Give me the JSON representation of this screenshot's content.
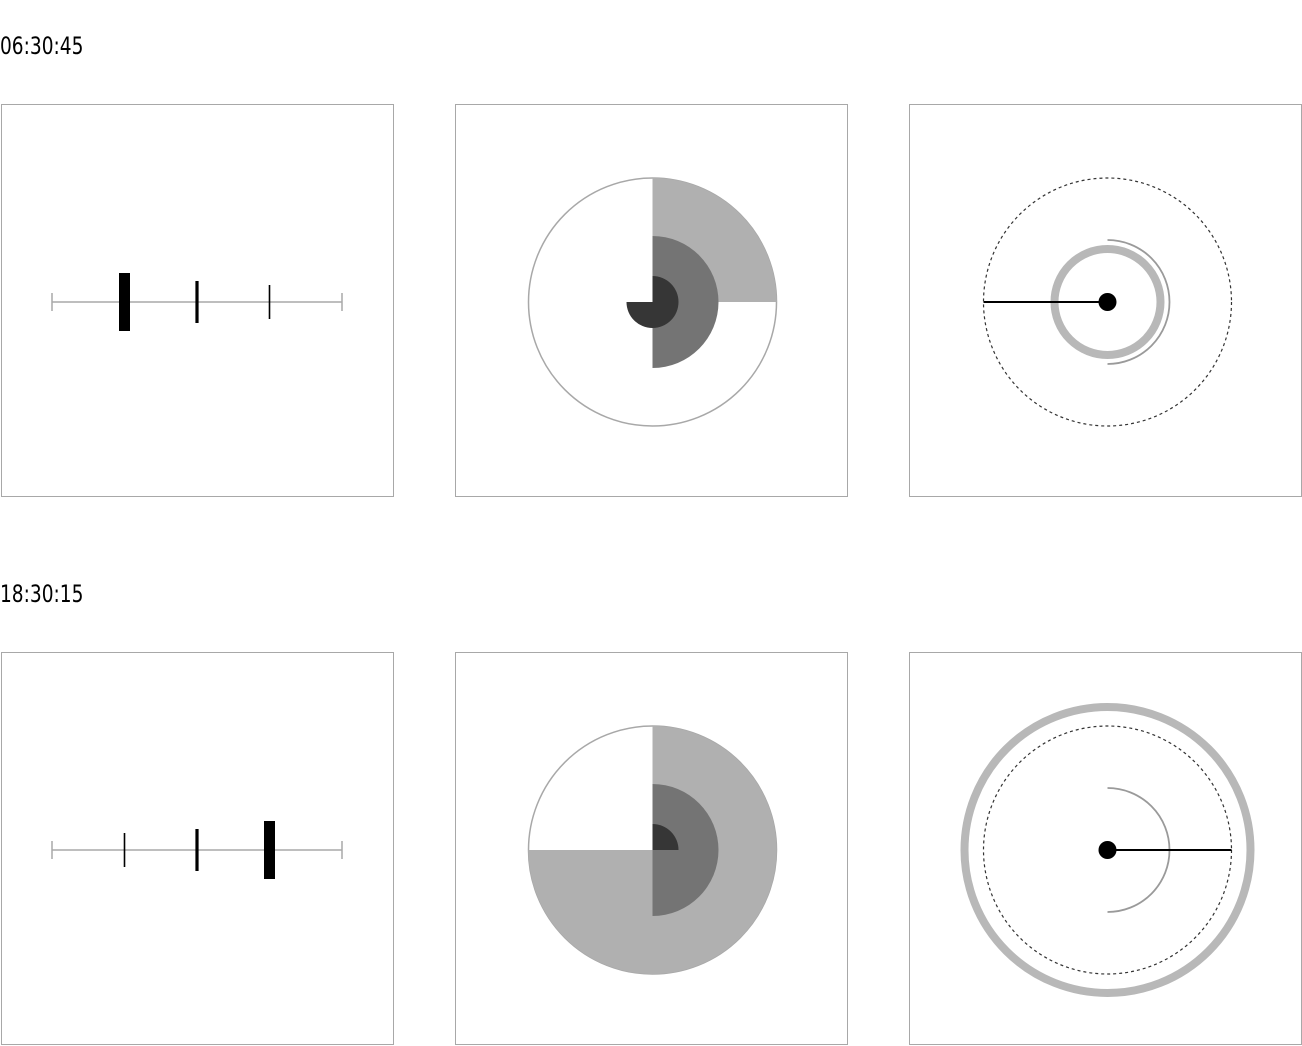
{
  "times": [
    {
      "label": "06:30:45",
      "hours": 6,
      "minutes": 30,
      "seconds": 45
    },
    {
      "label": "18:30:15",
      "hours": 18,
      "minutes": 30,
      "seconds": 15
    }
  ],
  "colors": {
    "border": "#a8a8a8",
    "axis": "#a8a8a8",
    "hour_fill": "#b0b0b0",
    "minute_fill": "#747474",
    "second_fill": "#363636",
    "ink": "#000000",
    "ring": "#b8b8b8",
    "arc": "#9a9a9a"
  }
}
